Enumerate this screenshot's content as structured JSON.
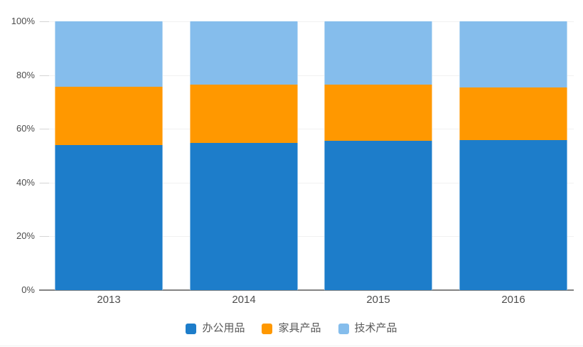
{
  "chart_data": {
    "type": "bar",
    "variant": "stacked-percent-column",
    "title": "",
    "xlabel": "",
    "ylabel": "",
    "categories": [
      "2013",
      "2014",
      "2015",
      "2016"
    ],
    "series": [
      {
        "name": "办公用品",
        "color": "#1d7dca",
        "values": [
          54.0,
          54.7,
          55.7,
          55.7
        ]
      },
      {
        "name": "家具产品",
        "color": "#ff9800",
        "values": [
          21.7,
          21.8,
          20.8,
          19.6
        ]
      },
      {
        "name": "技术产品",
        "color": "#85bdec",
        "values": [
          24.3,
          23.5,
          23.5,
          24.7
        ]
      }
    ],
    "y_ticks": [
      "0%",
      "20%",
      "40%",
      "60%",
      "80%",
      "100%"
    ],
    "ylim": [
      0,
      100
    ],
    "grid": true,
    "legend_position": "bottom"
  }
}
